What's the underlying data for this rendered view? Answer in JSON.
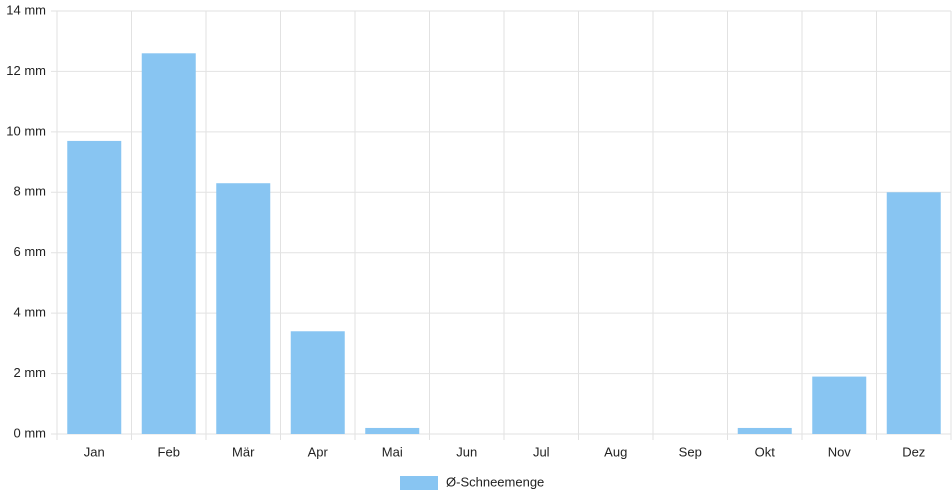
{
  "chart_data": {
    "type": "bar",
    "categories": [
      "Jan",
      "Feb",
      "Mär",
      "Apr",
      "Mai",
      "Jun",
      "Jul",
      "Aug",
      "Sep",
      "Okt",
      "Nov",
      "Dez"
    ],
    "series": [
      {
        "name": "Ø-Schneemenge",
        "color": "#88c5f2",
        "values": [
          9.7,
          12.6,
          8.3,
          3.4,
          0.2,
          0,
          0,
          0,
          0,
          0.2,
          1.9,
          8.0
        ]
      }
    ],
    "ylim": [
      0,
      14
    ],
    "yticks": [
      {
        "value": 0,
        "label": "0 mm"
      },
      {
        "value": 2,
        "label": "2 mm"
      },
      {
        "value": 4,
        "label": "4 mm"
      },
      {
        "value": 6,
        "label": "6 mm"
      },
      {
        "value": 8,
        "label": "8 mm"
      },
      {
        "value": 10,
        "label": "10 mm"
      },
      {
        "value": 12,
        "label": "12 mm"
      },
      {
        "value": 14,
        "label": "14 mm"
      }
    ],
    "grid": true,
    "legend": "bottom"
  }
}
